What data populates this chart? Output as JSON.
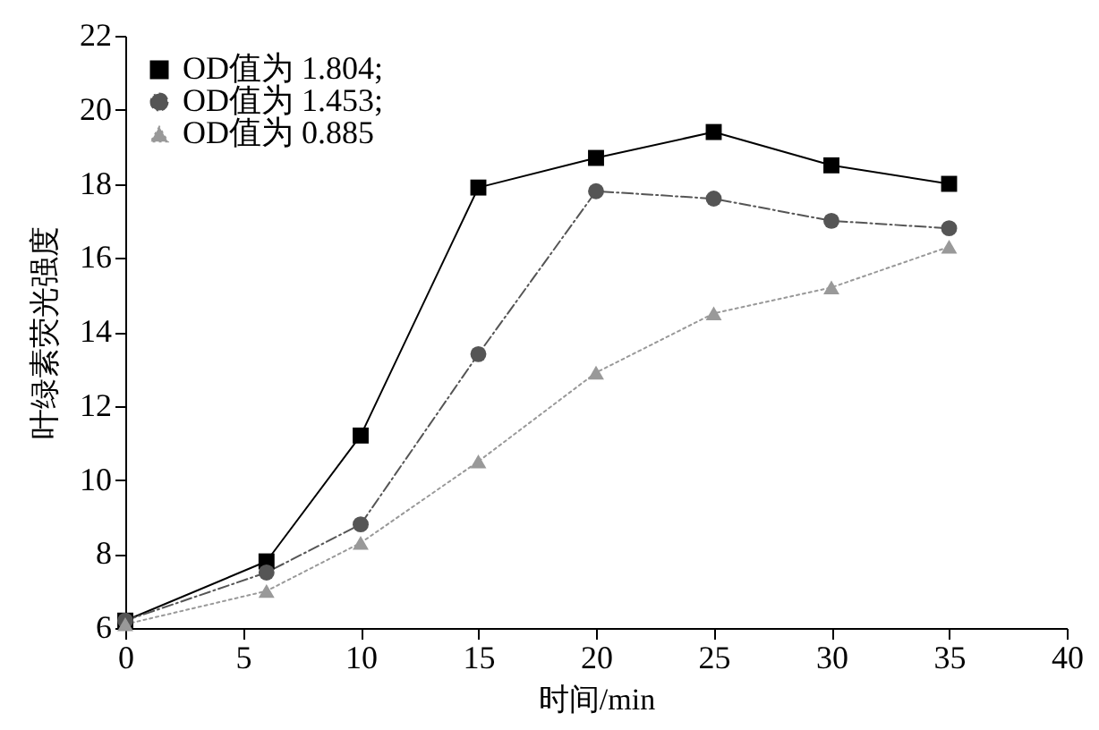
{
  "chart_data": {
    "type": "line",
    "xlabel": "时间/min",
    "ylabel": "叶绿素荧光强度",
    "x": [
      0,
      6,
      10,
      15,
      20,
      25,
      30,
      35
    ],
    "series": [
      {
        "name": "OD值为 1.804;",
        "color": "#000000",
        "marker": "square",
        "line_style": "solid",
        "values": [
          6.2,
          7.8,
          11.2,
          17.9,
          18.7,
          19.4,
          18.5,
          18.0
        ]
      },
      {
        "name": "OD值为 1.453;",
        "color": "#555555",
        "marker": "circle",
        "line_style": "dashed",
        "values": [
          6.2,
          7.5,
          8.8,
          13.4,
          17.8,
          17.6,
          17.0,
          16.8
        ]
      },
      {
        "name": "OD值为 0.885",
        "color": "#999999",
        "marker": "triangle",
        "line_style": "dotted",
        "values": [
          6.1,
          7.0,
          8.3,
          10.5,
          12.9,
          14.5,
          15.2,
          16.3
        ]
      }
    ],
    "xlim": [
      0,
      40
    ],
    "xticks": [
      0,
      5,
      10,
      15,
      20,
      25,
      30,
      35,
      40
    ],
    "ylim": [
      6,
      22
    ],
    "yticks": [
      6,
      8,
      10,
      12,
      14,
      16,
      18,
      20,
      22
    ],
    "grid": false,
    "legend": "top left"
  }
}
